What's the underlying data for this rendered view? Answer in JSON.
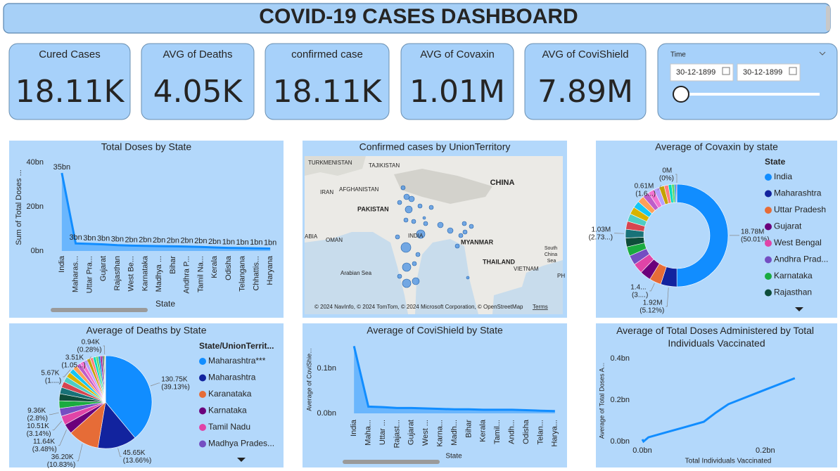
{
  "header": {
    "title": "COVID-19 CASES DASHBOARD"
  },
  "kpis": [
    {
      "label": "Cured Cases",
      "value": "18.11K"
    },
    {
      "label": "AVG of Deaths",
      "value": "4.05K"
    },
    {
      "label": "confirmed case",
      "value": "18.11K"
    },
    {
      "label": "AVG of Covaxin",
      "value": "1.01M"
    },
    {
      "label": "AVG of CoviShield",
      "value": "7.89M"
    }
  ],
  "time_filter": {
    "label": "Time",
    "start": "30-12-1899",
    "end": "30-12-1899"
  },
  "map": {
    "title": "Confirmed cases by UnionTerritory",
    "labels": [
      "TURKMENISTAN",
      "TAJIKISTAN",
      "AFGHANISTAN",
      "IRAN",
      "PAKISTAN",
      "CHINA",
      "INDIA",
      "ABIA",
      "OMAN",
      "MYANMAR",
      "South China Sea",
      "THAILAND",
      "VIETNAM",
      "Arabian Sea",
      "PH"
    ],
    "attribution": "© 2024 NavInfo, © 2024 TomTom, © 2024 Microsoft Corporation, © OpenStreetMap",
    "terms": "Terms"
  },
  "chart_data": [
    {
      "type": "area",
      "title": "Total Doses by State",
      "x_label": "State",
      "y_label": "Sum of Total Doses ...",
      "categories": [
        "India",
        "Maharas...",
        "Uttar Pra...",
        "Gujarat",
        "Rajasthan",
        "West Be...",
        "Karnataka",
        "Madhya ...",
        "Bihar",
        "Andhra P...",
        "Tamil Na...",
        "Kerala",
        "Odisha",
        "Telangana",
        "Chhattis...",
        "Haryana"
      ],
      "values": [
        35.2,
        3.4,
        3.2,
        3.0,
        2.6,
        2.4,
        2.3,
        2.2,
        2.1,
        2.0,
        1.8,
        1.6,
        1.4,
        1.3,
        1.2,
        1.1
      ],
      "value_labels": [
        "35bn",
        "3bn",
        "3bn",
        "3bn",
        "3bn",
        "2bn",
        "2bn",
        "2bn",
        "2bn",
        "2bn",
        "2bn",
        "2bn",
        "1bn",
        "1bn",
        "1bn",
        "1bn"
      ],
      "color": "#118dff",
      "ylim": [
        0,
        40
      ],
      "yticks": [
        {
          "value": 0,
          "label": "0bn"
        },
        {
          "value": 20,
          "label": "20bn"
        },
        {
          "value": 40,
          "label": "40bn"
        }
      ]
    },
    {
      "type": "donut",
      "title": "Average of Covaxin by state",
      "legend_title": "State",
      "categories": [
        "India",
        "Maharashtra",
        "Uttar Pradesh",
        "Gujarat",
        "West Bengal",
        "Andhra Prad...",
        "Karnataka",
        "Rajasthan",
        null,
        null,
        null,
        null,
        null,
        null,
        null,
        null,
        null,
        null,
        null,
        null,
        null,
        null,
        null,
        null
      ],
      "values": [
        18.78,
        1.92,
        1.4,
        1.3,
        1.2,
        1.15,
        1.1,
        1.05,
        1.03,
        0.95,
        0.92,
        0.88,
        0.84,
        0.8,
        0.76,
        0.72,
        0.68,
        0.61,
        0.5,
        0.4,
        0.3,
        0.2,
        0.1,
        0
      ],
      "value_labels": [
        "18.78M (50.01%)",
        "1.92M (5.12%)",
        "1.4... (3....)",
        null,
        null,
        null,
        null,
        null,
        "1.03M (2.73...)",
        null,
        null,
        null,
        null,
        null,
        null,
        null,
        null,
        "0.61M (1.6...)",
        null,
        null,
        null,
        null,
        null,
        "0M (0%)"
      ],
      "colors": [
        "#118dff",
        "#12239e",
        "#e66c37",
        "#6b007b",
        "#e044a7",
        "#744ec2",
        "#1aab40",
        "#0e4d3a",
        "#197278",
        "#d64550",
        "#4ecdc4",
        "#d9b300",
        "#15c6f4",
        "#ffa058",
        "#be5dc9",
        "#f472d0",
        "#b5a1ff",
        "#c4a200",
        "#ff8080",
        "#00dbbc",
        "#5bd667",
        "#0091d5",
        "#99008a",
        "#533285"
      ]
    },
    {
      "type": "pie",
      "title": "Average of Deaths by State",
      "legend_title": "State/UnionTerrit...",
      "categories": [
        "Maharashtra***",
        "Maharashtra",
        "Karanataka",
        "Karnataka",
        "Tamil Nadu",
        "Madhya Prades...",
        null,
        null,
        null,
        null,
        null,
        null,
        null,
        null,
        null,
        null,
        null,
        null,
        null,
        null,
        null,
        null,
        null,
        null,
        null,
        null,
        null
      ],
      "values": [
        130.75,
        45.65,
        36.2,
        11.64,
        10.51,
        9.36,
        8.8,
        8.2,
        7.6,
        7.0,
        6.5,
        6.1,
        5.67,
        5.3,
        5.0,
        4.6,
        4.2,
        3.9,
        3.51,
        3.2,
        2.8,
        2.4,
        2.0,
        1.6,
        1.2,
        0.94,
        0.5
      ],
      "value_labels": [
        "130.75K (39.13%)",
        "45.65K (13.66%)",
        "36.20K (10.83%)",
        "11.64K (3.48%)",
        "10.51K (3.14%)",
        "9.36K (2.8%)",
        null,
        null,
        null,
        null,
        null,
        null,
        "5.67K (1....)",
        null,
        null,
        null,
        null,
        null,
        "3.51K (1.05...)",
        null,
        null,
        null,
        null,
        null,
        null,
        "0.94K (0.28%)",
        null
      ],
      "colors": [
        "#118dff",
        "#12239e",
        "#e66c37",
        "#6b007b",
        "#e044a7",
        "#744ec2",
        "#1aab40",
        "#0e4d3a",
        "#197278",
        "#d64550",
        "#4ecdc4",
        "#d9b300",
        "#15c6f4",
        "#ffa058",
        "#be5dc9",
        "#f472d0",
        "#b5a1ff",
        "#c4a200",
        "#ff8080",
        "#00dbbc",
        "#5bd667",
        "#0091d5",
        "#99008a",
        "#533285",
        "#25891c",
        "#99700a",
        "#ff4141"
      ]
    },
    {
      "type": "area",
      "title": "Average of CoviShield by State",
      "x_label": "State",
      "y_label": "Average of CoviShie...",
      "categories": [
        "India",
        "Maha...",
        "Uttar ...",
        "Rajast...",
        "Gujarat",
        "West ...",
        "Karna...",
        "Madh...",
        "Bihar",
        "Kerala",
        "Tamil...",
        "Andh...",
        "Odisha",
        "Telan...",
        "Harya..."
      ],
      "values": [
        0.15,
        0.015,
        0.014,
        0.012,
        0.012,
        0.011,
        0.01,
        0.009,
        0.009,
        0.008,
        0.008,
        0.008,
        0.007,
        0.006,
        0.005
      ],
      "color": "#118dff",
      "ylim": [
        0,
        0.16
      ],
      "yticks": [
        {
          "value": 0,
          "label": "0.0bn"
        },
        {
          "value": 0.1,
          "label": "0.1bn"
        }
      ]
    },
    {
      "type": "line",
      "title": "Average of Total Doses Administered by Total Individuals Vaccinated",
      "x_label": "Total Individuals Vaccinated",
      "y_label": "Average of Total Doses A...",
      "x": [
        0,
        0.002,
        0.01,
        0.04,
        0.07,
        0.1,
        0.12,
        0.14,
        0.2,
        0.248
      ],
      "values": [
        0.01,
        0,
        0.02,
        0.045,
        0.07,
        0.095,
        0.14,
        0.18,
        0.25,
        0.305
      ],
      "color": "#118dff",
      "xlim": [
        0,
        0.27
      ],
      "ylim": [
        0,
        0.4
      ],
      "xticks": [
        {
          "value": 0,
          "label": "0.0bn"
        },
        {
          "value": 0.2,
          "label": "0.2bn"
        }
      ],
      "yticks": [
        {
          "value": 0,
          "label": "0.0bn"
        },
        {
          "value": 0.2,
          "label": "0.2bn"
        },
        {
          "value": 0.4,
          "label": "0.4bn"
        }
      ]
    }
  ]
}
